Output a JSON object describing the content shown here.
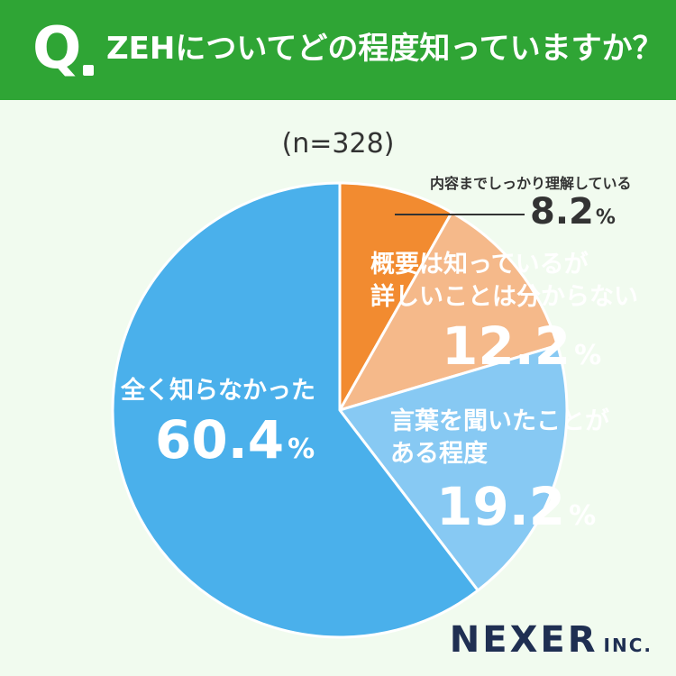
{
  "header": {
    "q_mark": "Q",
    "question": "ZEHについてどの程度知っていますか？"
  },
  "sample_size": "(n=328)",
  "logo": {
    "main": "NEXER",
    "sub": "INC."
  },
  "chart_data": {
    "type": "pie",
    "title": "ZEHについてどの程度知っていますか？",
    "n": 328,
    "pct_unit": "%",
    "slices": [
      {
        "label": "内容までしっかり理解している",
        "value": 8.2,
        "value_text": "8.2",
        "color": "#f28b30"
      },
      {
        "label": "概要は知っているが詳しいことは分からない",
        "label_lines": [
          "概要は知っているが",
          "詳しいことは分からない"
        ],
        "value": 12.2,
        "value_text": "12.2",
        "color": "#f5b98a"
      },
      {
        "label": "言葉を聞いたことがある程度",
        "label_lines": [
          "言葉を聞いたことが",
          "ある程度"
        ],
        "value": 19.2,
        "value_text": "19.2",
        "color": "#87c9f3"
      },
      {
        "label": "全く知らなかった",
        "value": 60.4,
        "value_text": "60.4",
        "color": "#4ab0eb"
      }
    ]
  }
}
